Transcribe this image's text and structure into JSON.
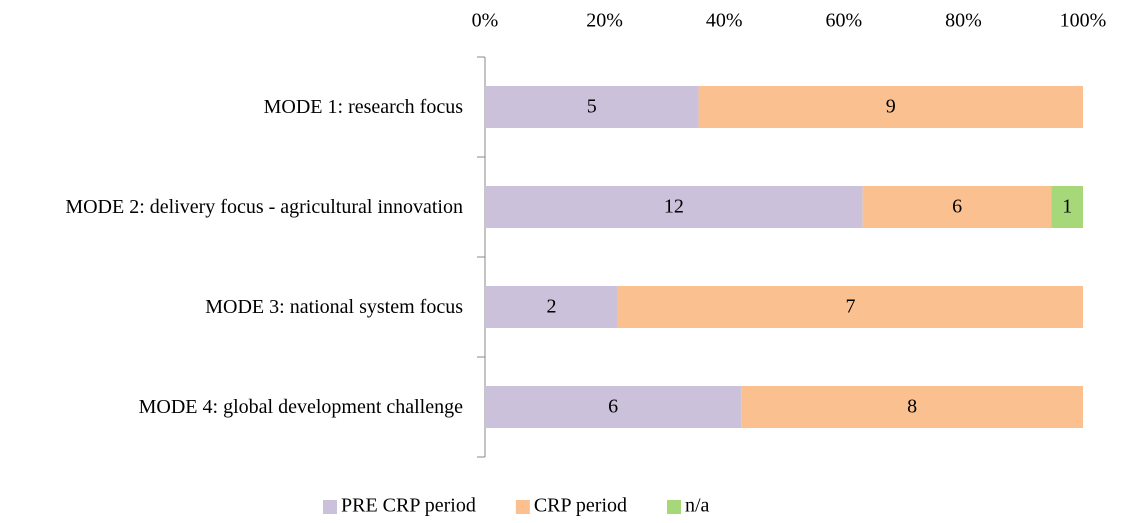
{
  "chart_data": {
    "type": "bar",
    "orientation": "horizontal",
    "stacked": "percent",
    "categories": [
      "MODE 1: research focus",
      "MODE 2: delivery focus - agricultural innovation",
      "MODE 3: national system focus",
      "MODE 4: global development challenge"
    ],
    "series": [
      {
        "name": "PRE CRP period",
        "color": "#ccc1da",
        "values": [
          5,
          12,
          2,
          6
        ]
      },
      {
        "name": "CRP period",
        "color": "#fac090",
        "values": [
          9,
          6,
          7,
          8
        ]
      },
      {
        "name": "n/a",
        "color": "#a6d87a",
        "values": [
          0,
          1,
          0,
          0
        ]
      }
    ],
    "xlim": [
      0,
      100
    ],
    "xticks": [
      {
        "value": 0,
        "label": "0%"
      },
      {
        "value": 20,
        "label": "20%"
      },
      {
        "value": 40,
        "label": "40%"
      },
      {
        "value": 60,
        "label": "60%"
      },
      {
        "value": 80,
        "label": "80%"
      },
      {
        "value": 100,
        "label": "100%"
      }
    ],
    "legend": "bottom"
  }
}
